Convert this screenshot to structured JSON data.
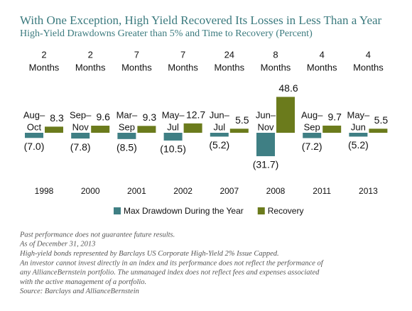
{
  "chart_data": {
    "type": "bar",
    "title": "With One Exception, High Yield Recovered Its Losses in Less Than a Year",
    "subtitle": "High-Yield Drawdowns Greater than 5% and Time to Recovery (Percent)",
    "categories": [
      "1998",
      "2000",
      "2001",
      "2002",
      "2007",
      "2008",
      "2011",
      "2013"
    ],
    "periods": [
      [
        "Aug–",
        "Oct"
      ],
      [
        "Sep–",
        "Nov"
      ],
      [
        "Mar–",
        "Sep"
      ],
      [
        "May–",
        "Jul"
      ],
      [
        "Jun–",
        "Jul"
      ],
      [
        "Jun–",
        "Nov"
      ],
      [
        "Aug–",
        "Sep"
      ],
      [
        "May–",
        "Jun"
      ]
    ],
    "recovery_times": [
      [
        "2",
        "Months"
      ],
      [
        "2",
        "Months"
      ],
      [
        "7",
        "Months"
      ],
      [
        "7",
        "Months"
      ],
      [
        "24",
        "Months"
      ],
      [
        "8",
        "Months"
      ],
      [
        "4",
        "Months"
      ],
      [
        "4",
        "Months"
      ]
    ],
    "series": [
      {
        "name": "Max Drawdown During the Year",
        "color": "#3f7f84",
        "values": [
          -7.0,
          -7.8,
          -8.5,
          -10.5,
          -5.2,
          -31.7,
          -7.2,
          -5.2
        ],
        "value_labels": [
          "(7.0)",
          "(7.8)",
          "(8.5)",
          "(10.5)",
          "(5.2)",
          "(31.7)",
          "(7.2)",
          "(5.2)"
        ]
      },
      {
        "name": "Recovery",
        "color": "#6b7b1c",
        "values": [
          8.3,
          9.6,
          9.3,
          12.7,
          5.5,
          48.6,
          9.7,
          5.5
        ]
      }
    ],
    "footnotes": [
      "Past performance does not guarantee future results.",
      "As of December 31, 2013",
      "High-yield bonds represented by Barclays US Corporate High-Yield 2% Issue Capped.",
      "An investor cannot invest directly in an index and its performance does not reflect the performance of",
      "any AllianceBernstein portfolio. The unmanaged index does not reflect fees and expenses associated",
      "with the active management of a portfolio.",
      "Source: Barclays and AllianceBernstein"
    ]
  }
}
